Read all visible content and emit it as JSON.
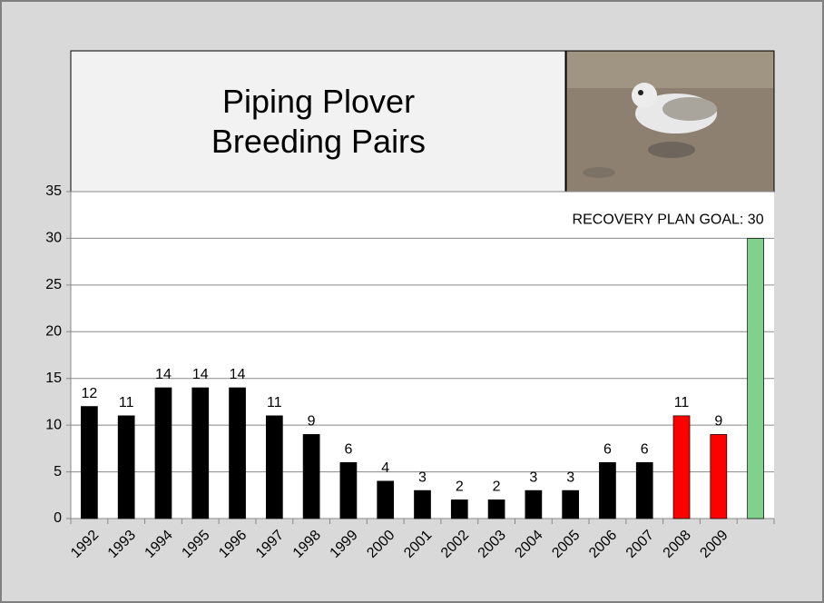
{
  "chart_data": {
    "type": "bar",
    "title": "Piping Plover Breeding Pairs",
    "categories": [
      "1992",
      "1993",
      "1994",
      "1995",
      "1996",
      "1997",
      "1998",
      "1999",
      "2000",
      "2001",
      "2002",
      "2003",
      "2004",
      "2005",
      "2006",
      "2007",
      "2008",
      "2009",
      null
    ],
    "values": [
      12,
      11,
      14,
      14,
      14,
      11,
      9,
      6,
      4,
      3,
      2,
      2,
      3,
      3,
      6,
      6,
      11,
      9,
      30
    ],
    "value_labels": [
      "12",
      "11",
      "14",
      "14",
      "14",
      "11",
      "9",
      "6",
      "4",
      "3",
      "2",
      "2",
      "3",
      "3",
      "6",
      "6",
      "11",
      "9",
      "RECOVERY PLAN GOAL:  30"
    ],
    "colors": [
      "#000000",
      "#000000",
      "#000000",
      "#000000",
      "#000000",
      "#000000",
      "#000000",
      "#000000",
      "#000000",
      "#000000",
      "#000000",
      "#000000",
      "#000000",
      "#000000",
      "#000000",
      "#000000",
      "#ff0000",
      "#ff0000",
      "#7fd18b"
    ],
    "ylim": [
      0,
      35
    ],
    "yticks": [
      0,
      5,
      10,
      15,
      20,
      25,
      30,
      35
    ],
    "grid": true
  }
}
